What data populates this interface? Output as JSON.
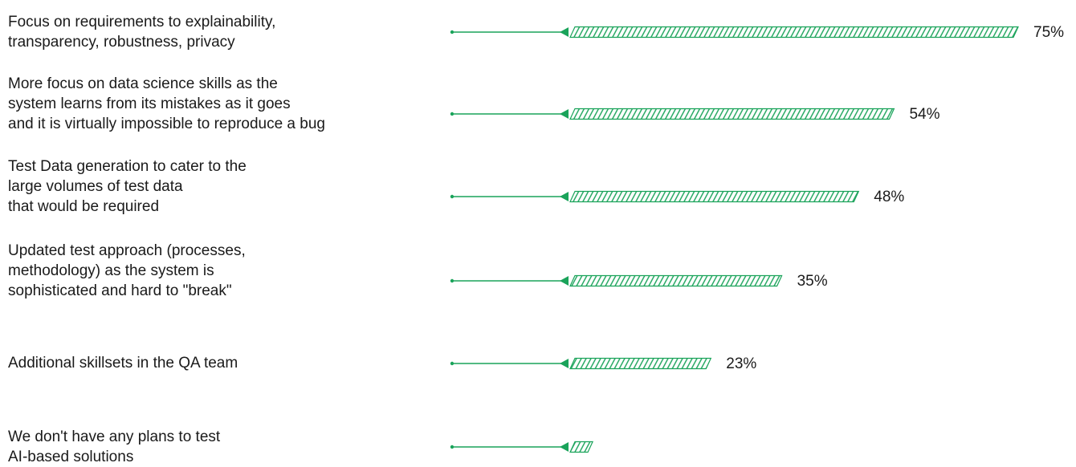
{
  "chart_data": {
    "type": "bar",
    "orientation": "horizontal",
    "categories": [
      "Focus on requirements to explainability,\ntransparency, robustness, privacy",
      "More focus on data science skills as the\nsystem learns from its mistakes as it goes\nand it is virtually impossible to reproduce a bug",
      "Test Data generation to cater to the\nlarge volumes of test data\nthat would be required",
      "Updated test approach (processes,\nmethodology) as the system is\nsophisticated and hard to \"break\"",
      "Additional skillsets in the QA team",
      "We don't have any plans to test\nAI-based solutions"
    ],
    "values": [
      75,
      54,
      48,
      35,
      23,
      3
    ],
    "value_labels": [
      "75%",
      "54%",
      "48%",
      "35%",
      "23%",
      ""
    ],
    "unit": "%",
    "xlim": [
      0,
      75
    ],
    "grid": false,
    "legend": "none"
  },
  "colors": {
    "accent": "#1aa35a",
    "text": "#1a1a1a"
  }
}
